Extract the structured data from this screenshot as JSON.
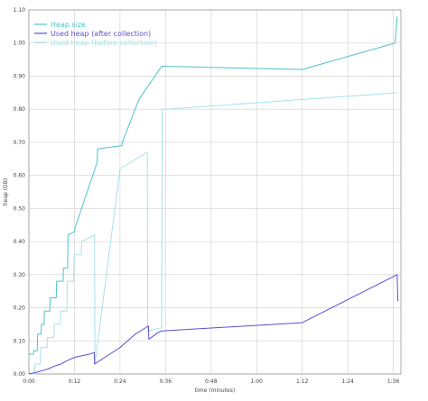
{
  "chart_data": {
    "type": "line",
    "xlabel": "time (minutes)",
    "ylabel": "heap (GB)",
    "xlim": [
      0,
      98
    ],
    "ylim": [
      0,
      1.1
    ],
    "grid": true,
    "legend_placement": "top-left",
    "x_ticks": [
      {
        "value": 0,
        "label": "0:00"
      },
      {
        "value": 12,
        "label": "0:12"
      },
      {
        "value": 24,
        "label": "0:24"
      },
      {
        "value": 36,
        "label": "0:36"
      },
      {
        "value": 48,
        "label": "0:48"
      },
      {
        "value": 60,
        "label": "1:00"
      },
      {
        "value": 72,
        "label": "1:12"
      },
      {
        "value": 84,
        "label": "1:24"
      },
      {
        "value": 96,
        "label": "1:36"
      }
    ],
    "y_ticks": [
      {
        "value": 0,
        "label": "0.00"
      },
      {
        "value": 0.1,
        "label": "0.10"
      },
      {
        "value": 0.2,
        "label": "0.20"
      },
      {
        "value": 0.3,
        "label": "0.30"
      },
      {
        "value": 0.4,
        "label": "0.40"
      },
      {
        "value": 0.5,
        "label": "0.50"
      },
      {
        "value": 0.6,
        "label": "0.60"
      },
      {
        "value": 0.7,
        "label": "0.70"
      },
      {
        "value": 0.8,
        "label": "0.80"
      },
      {
        "value": 0.9,
        "label": "0.90"
      },
      {
        "value": 1.0,
        "label": "1.00"
      },
      {
        "value": 1.1,
        "label": "1.10"
      }
    ],
    "series": [
      {
        "name": "Heap size",
        "color": "#4ec3c8",
        "x": [
          0,
          1.2,
          1.3,
          2.2,
          2.3,
          3.2,
          3.3,
          4.0,
          4.1,
          5.5,
          5.6,
          7.2,
          7.3,
          9.0,
          9.1,
          10.2,
          10.3,
          12.0,
          12.1,
          18.0,
          18.1,
          24.5,
          24.6,
          29.0,
          35.0,
          72.0,
          96.5,
          97.0
        ],
        "y": [
          0.06,
          0.06,
          0.07,
          0.07,
          0.12,
          0.12,
          0.15,
          0.15,
          0.19,
          0.19,
          0.23,
          0.23,
          0.28,
          0.28,
          0.32,
          0.32,
          0.42,
          0.43,
          0.44,
          0.64,
          0.68,
          0.69,
          0.7,
          0.83,
          0.93,
          0.92,
          1.0,
          1.08
        ]
      },
      {
        "name": "Used heap (after collection)",
        "color": "#5a4fd6",
        "x": [
          0,
          2.0,
          3.5,
          5.0,
          7.0,
          8.5,
          10.0,
          12.0,
          14.0,
          16.0,
          17.2,
          17.3,
          20.0,
          24.0,
          28.0,
          31.5,
          31.6,
          34.0,
          35.0,
          72.0,
          97.0,
          97.2
        ],
        "y": [
          0.0,
          0.005,
          0.01,
          0.015,
          0.025,
          0.03,
          0.04,
          0.05,
          0.055,
          0.06,
          0.065,
          0.03,
          0.05,
          0.08,
          0.12,
          0.145,
          0.105,
          0.125,
          0.13,
          0.155,
          0.3,
          0.22
        ]
      },
      {
        "name": "Used heap (before collection)",
        "color": "#a8e2e8",
        "x": [
          0,
          1.5,
          1.6,
          3.0,
          3.1,
          4.8,
          4.9,
          6.6,
          6.7,
          8.3,
          8.4,
          10.0,
          10.1,
          11.8,
          11.9,
          13.8,
          13.9,
          17.3,
          17.4,
          24.0,
          31.2,
          31.3,
          35.0,
          35.1,
          36.5,
          97.0
        ],
        "y": [
          0.0,
          0.0,
          0.03,
          0.03,
          0.08,
          0.08,
          0.11,
          0.11,
          0.15,
          0.15,
          0.19,
          0.19,
          0.28,
          0.28,
          0.36,
          0.36,
          0.4,
          0.42,
          0.03,
          0.62,
          0.67,
          0.13,
          0.14,
          0.8,
          0.8,
          0.85
        ]
      }
    ]
  }
}
